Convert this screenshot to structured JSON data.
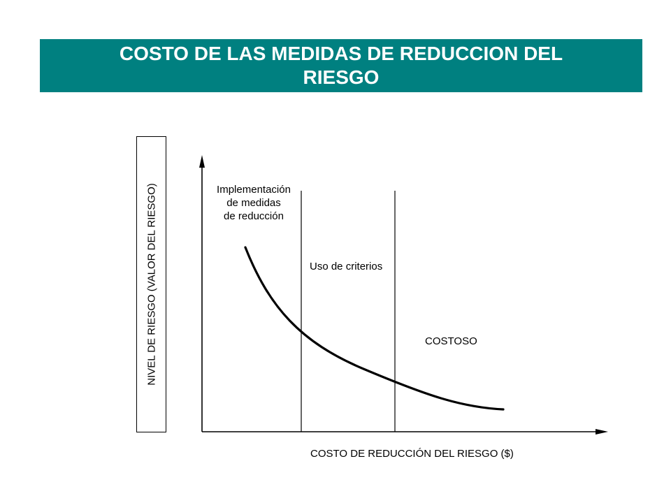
{
  "title": {
    "line1": "COSTO DE LAS MEDIDAS DE  REDUCCION DEL",
    "line2": "RIESGO"
  },
  "axes": {
    "y_label": "NIVEL DE RIESGO (VALOR DEL RIESGO)",
    "x_label": "COSTO DE REDUCCIÓN DEL RIESGO ($)"
  },
  "regions": {
    "implementation": {
      "line1": "Implementación",
      "line2": "de medidas",
      "line3": "de reducción"
    },
    "criteria": "Uso de criterios",
    "costly": "COSTOSO"
  },
  "colors": {
    "banner": "#008080",
    "title_text": "#ffffff",
    "lines": "#000000"
  }
}
